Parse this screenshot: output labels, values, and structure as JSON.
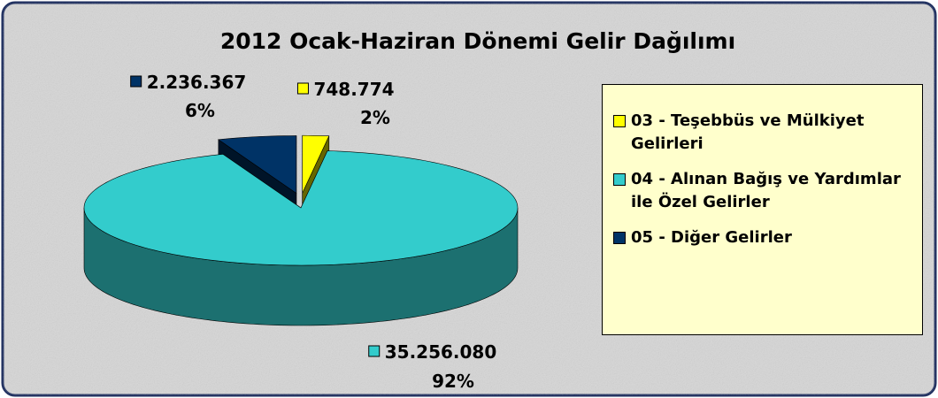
{
  "chart_data": {
    "type": "pie3d",
    "title": "2012 Ocak-Haziran Dönemi Gelir Dağılımı",
    "categories": [
      "03 - Teşebbüs ve Mülkiyet Gelirleri",
      "04 - Alınan Bağış ve Yardımlar ile Özel Gelirler",
      "05 - Diğer Gelirler"
    ],
    "values": [
      748774,
      35256080,
      2236367
    ],
    "value_labels": [
      "748.774",
      "35.256.080",
      "2.236.367"
    ],
    "percent_labels": [
      "2%",
      "92%",
      "6%"
    ],
    "colors": [
      "#ffff00",
      "#33cccc",
      "#003366"
    ],
    "exploded": [
      true,
      false,
      true
    ],
    "legend": "right"
  }
}
